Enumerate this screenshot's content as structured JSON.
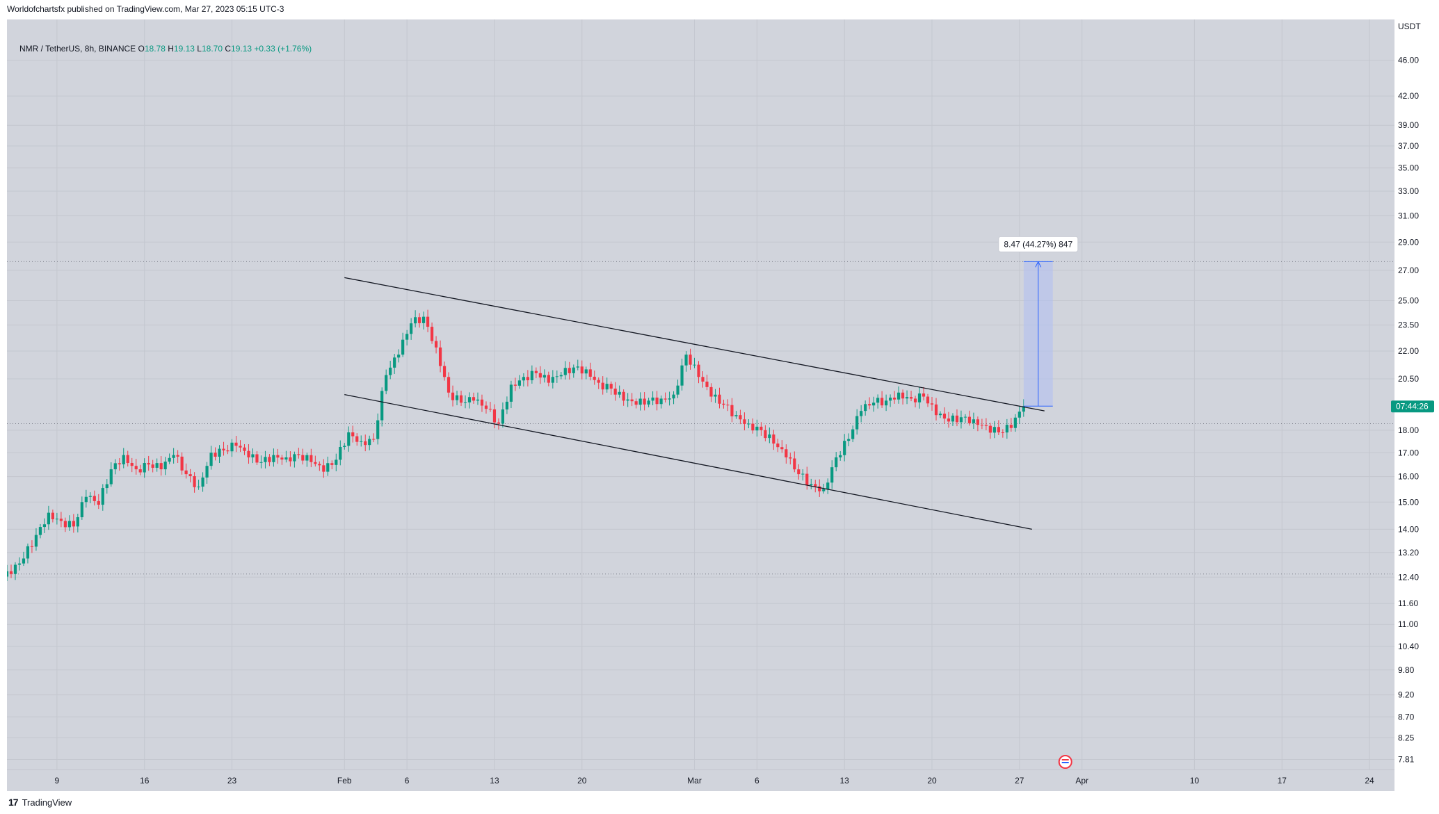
{
  "attribution": "Worldofchartsfx published on TradingView.com, Mar 27, 2023 05:15 UTC-3",
  "footer": {
    "logo_text": "TradingView"
  },
  "legend": {
    "symbol": "NMR / TetherUS, 8h, BINANCE",
    "o_label": "O",
    "o_value": "18.78",
    "h_label": "H",
    "h_value": "19.13",
    "l_label": "L",
    "l_value": "18.70",
    "c_label": "C",
    "c_value": "19.13",
    "change": "+0.33 (+1.76%)"
  },
  "colors": {
    "up": "#089981",
    "down": "#f23645",
    "background": "#d1d4dc",
    "measure_fill": "#b2c0f0",
    "measure_line": "#2962ff"
  },
  "chart_data": {
    "type": "candlestick",
    "currency": "USDT",
    "y_scale": "log",
    "ylim": [
      7.6,
      51
    ],
    "y_ticks": [
      {
        "value": 46,
        "label": "46.00"
      },
      {
        "value": 42,
        "label": "42.00"
      },
      {
        "value": 39,
        "label": "39.00"
      },
      {
        "value": 37,
        "label": "37.00"
      },
      {
        "value": 35,
        "label": "35.00"
      },
      {
        "value": 33,
        "label": "33.00"
      },
      {
        "value": 31,
        "label": "31.00"
      },
      {
        "value": 29,
        "label": "29.00"
      },
      {
        "value": 27,
        "label": "27.00"
      },
      {
        "value": 25,
        "label": "25.00"
      },
      {
        "value": 23.5,
        "label": "23.50"
      },
      {
        "value": 22,
        "label": "22.00"
      },
      {
        "value": 20.5,
        "label": "20.50"
      },
      {
        "value": 18,
        "label": "18.00"
      },
      {
        "value": 17,
        "label": "17.00"
      },
      {
        "value": 16,
        "label": "16.00"
      },
      {
        "value": 15,
        "label": "15.00"
      },
      {
        "value": 14,
        "label": "14.00"
      },
      {
        "value": 13.2,
        "label": "13.20"
      },
      {
        "value": 12.4,
        "label": "12.40"
      },
      {
        "value": 11.6,
        "label": "11.60"
      },
      {
        "value": 11,
        "label": "11.00"
      },
      {
        "value": 10.4,
        "label": "10.40"
      },
      {
        "value": 9.8,
        "label": "9.80"
      },
      {
        "value": 9.2,
        "label": "9.20"
      },
      {
        "value": 8.7,
        "label": "8.70"
      },
      {
        "value": 8.25,
        "label": "8.25"
      },
      {
        "value": 7.81,
        "label": "7.81"
      }
    ],
    "x_ticks": [
      {
        "date": "2023-01-09",
        "label": "9"
      },
      {
        "date": "2023-01-16",
        "label": "16"
      },
      {
        "date": "2023-01-23",
        "label": "23"
      },
      {
        "date": "2023-02-01",
        "label": "Feb"
      },
      {
        "date": "2023-02-06",
        "label": "6"
      },
      {
        "date": "2023-02-13",
        "label": "13"
      },
      {
        "date": "2023-02-20",
        "label": "20"
      },
      {
        "date": "2023-03-01",
        "label": "Mar"
      },
      {
        "date": "2023-03-06",
        "label": "6"
      },
      {
        "date": "2023-03-13",
        "label": "13"
      },
      {
        "date": "2023-03-20",
        "label": "20"
      },
      {
        "date": "2023-03-27",
        "label": "27"
      },
      {
        "date": "2023-04-01",
        "label": "Apr"
      },
      {
        "date": "2023-04-10",
        "label": "10"
      },
      {
        "date": "2023-04-17",
        "label": "17"
      },
      {
        "date": "2023-04-24",
        "label": "24"
      }
    ],
    "x_start": "2023-01-05",
    "x_end": "2023-04-26",
    "close_series": [
      [
        "2023-01-05",
        12.5
      ],
      [
        "2023-01-06",
        13.0
      ],
      [
        "2023-01-07",
        13.8
      ],
      [
        "2023-01-08",
        14.6
      ],
      [
        "2023-01-09",
        14.3
      ],
      [
        "2023-01-10",
        14.1
      ],
      [
        "2023-01-11",
        15.2
      ],
      [
        "2023-01-12",
        14.9
      ],
      [
        "2023-01-13",
        16.3
      ],
      [
        "2023-01-14",
        16.9
      ],
      [
        "2023-01-15",
        16.3
      ],
      [
        "2023-01-16",
        16.5
      ],
      [
        "2023-01-17",
        16.3
      ],
      [
        "2023-01-18",
        16.9
      ],
      [
        "2023-01-19",
        16.1
      ],
      [
        "2023-01-20",
        15.6
      ],
      [
        "2023-01-21",
        17.0
      ],
      [
        "2023-01-22",
        17.1
      ],
      [
        "2023-01-23",
        17.3
      ],
      [
        "2023-01-24",
        16.8
      ],
      [
        "2023-01-25",
        16.6
      ],
      [
        "2023-01-26",
        16.9
      ],
      [
        "2023-01-27",
        16.8
      ],
      [
        "2023-01-28",
        16.9
      ],
      [
        "2023-01-29",
        16.6
      ],
      [
        "2023-01-30",
        16.2
      ],
      [
        "2023-01-31",
        16.7
      ],
      [
        "2023-02-01",
        17.9
      ],
      [
        "2023-02-02",
        17.5
      ],
      [
        "2023-02-03",
        17.6
      ],
      [
        "2023-02-04",
        20.7
      ],
      [
        "2023-02-05",
        21.8
      ],
      [
        "2023-02-06",
        23.6
      ],
      [
        "2023-02-07",
        24.0
      ],
      [
        "2023-02-08",
        22.2
      ],
      [
        "2023-02-09",
        19.8
      ],
      [
        "2023-02-10",
        19.3
      ],
      [
        "2023-02-11",
        19.4
      ],
      [
        "2023-02-12",
        19.0
      ],
      [
        "2023-02-13",
        18.3
      ],
      [
        "2023-02-14",
        20.2
      ],
      [
        "2023-02-15",
        20.6
      ],
      [
        "2023-02-16",
        20.8
      ],
      [
        "2023-02-17",
        20.3
      ],
      [
        "2023-02-18",
        20.7
      ],
      [
        "2023-02-19",
        21.1
      ],
      [
        "2023-02-20",
        21.0
      ],
      [
        "2023-02-21",
        20.3
      ],
      [
        "2023-02-22",
        20.0
      ],
      [
        "2023-02-23",
        19.4
      ],
      [
        "2023-02-24",
        19.2
      ],
      [
        "2023-02-25",
        19.4
      ],
      [
        "2023-02-26",
        19.5
      ],
      [
        "2023-02-27",
        19.7
      ],
      [
        "2023-02-28",
        21.8
      ],
      [
        "2023-03-01",
        20.6
      ],
      [
        "2023-03-02",
        19.6
      ],
      [
        "2023-03-03",
        19.2
      ],
      [
        "2023-03-04",
        18.7
      ],
      [
        "2023-03-05",
        18.3
      ],
      [
        "2023-03-06",
        18.0
      ],
      [
        "2023-03-07",
        17.4
      ],
      [
        "2023-03-08",
        16.8
      ],
      [
        "2023-03-09",
        16.1
      ],
      [
        "2023-03-10",
        15.7
      ],
      [
        "2023-03-11",
        15.5
      ],
      [
        "2023-03-12",
        16.8
      ],
      [
        "2023-03-13",
        17.6
      ],
      [
        "2023-03-14",
        18.9
      ],
      [
        "2023-03-15",
        19.3
      ],
      [
        "2023-03-16",
        19.4
      ],
      [
        "2023-03-17",
        19.8
      ],
      [
        "2023-03-18",
        19.5
      ],
      [
        "2023-03-19",
        19.6
      ],
      [
        "2023-03-20",
        18.7
      ],
      [
        "2023-03-21",
        18.4
      ],
      [
        "2023-03-22",
        18.6
      ],
      [
        "2023-03-23",
        18.5
      ],
      [
        "2023-03-24",
        18.2
      ],
      [
        "2023-03-25",
        17.9
      ],
      [
        "2023-03-26",
        18.1
      ],
      [
        "2023-03-27",
        19.13
      ]
    ],
    "trendlines": [
      {
        "name": "upper-channel-line",
        "points": [
          [
            "2023-02-01",
            26.5
          ],
          [
            "2023-03-29",
            18.9
          ]
        ]
      },
      {
        "name": "lower-channel-line",
        "points": [
          [
            "2023-02-01",
            19.7
          ],
          [
            "2023-03-28",
            14.0
          ]
        ]
      }
    ],
    "measure": {
      "label": "8.47 (44.27%) 847",
      "from_date": "2023-03-27",
      "to_date": "2023-03-29",
      "from_price": 19.13,
      "to_price": 27.6
    },
    "horizontal_levels": [
      27.6,
      18.3,
      12.5
    ],
    "current_price_tag": "07:44:26",
    "current_price": 19.13
  }
}
